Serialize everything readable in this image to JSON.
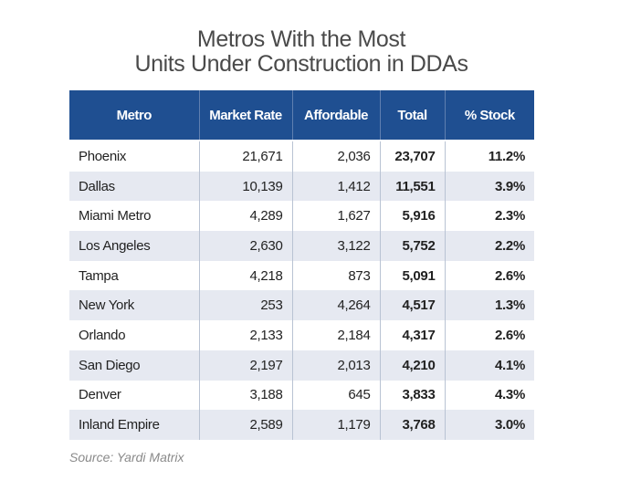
{
  "chart_data": {
    "type": "table",
    "title": [
      "Metros With the Most",
      "Units Under Construction in DDAs"
    ],
    "columns": [
      "Metro",
      "Market Rate",
      "Affordable",
      "Total",
      "% Stock"
    ],
    "rows": [
      [
        "Phoenix",
        "21,671",
        "2,036",
        "23,707",
        "11.2%"
      ],
      [
        "Dallas",
        "10,139",
        "1,412",
        "11,551",
        "3.9%"
      ],
      [
        "Miami Metro",
        "4,289",
        "1,627",
        "5,916",
        "2.3%"
      ],
      [
        "Los Angeles",
        "2,630",
        "3,122",
        "5,752",
        "2.2%"
      ],
      [
        "Tampa",
        "4,218",
        "873",
        "5,091",
        "2.6%"
      ],
      [
        "New York",
        "253",
        "4,264",
        "4,517",
        "1.3%"
      ],
      [
        "Orlando",
        "2,133",
        "2,184",
        "4,317",
        "2.6%"
      ],
      [
        "San Diego",
        "2,197",
        "2,013",
        "4,210",
        "4.1%"
      ],
      [
        "Denver",
        "3,188",
        "645",
        "3,833",
        "4.3%"
      ],
      [
        "Inland Empire",
        "2,589",
        "1,179",
        "3,768",
        "3.0%"
      ]
    ],
    "source": "Source: Yardi Matrix"
  },
  "colors": {
    "header_background": "#1f4f91",
    "header_text": "#ffffff",
    "alt_row_background": "#e6e9f1",
    "title_text": "#4a4a4a",
    "source_text": "#8a8a8a"
  }
}
